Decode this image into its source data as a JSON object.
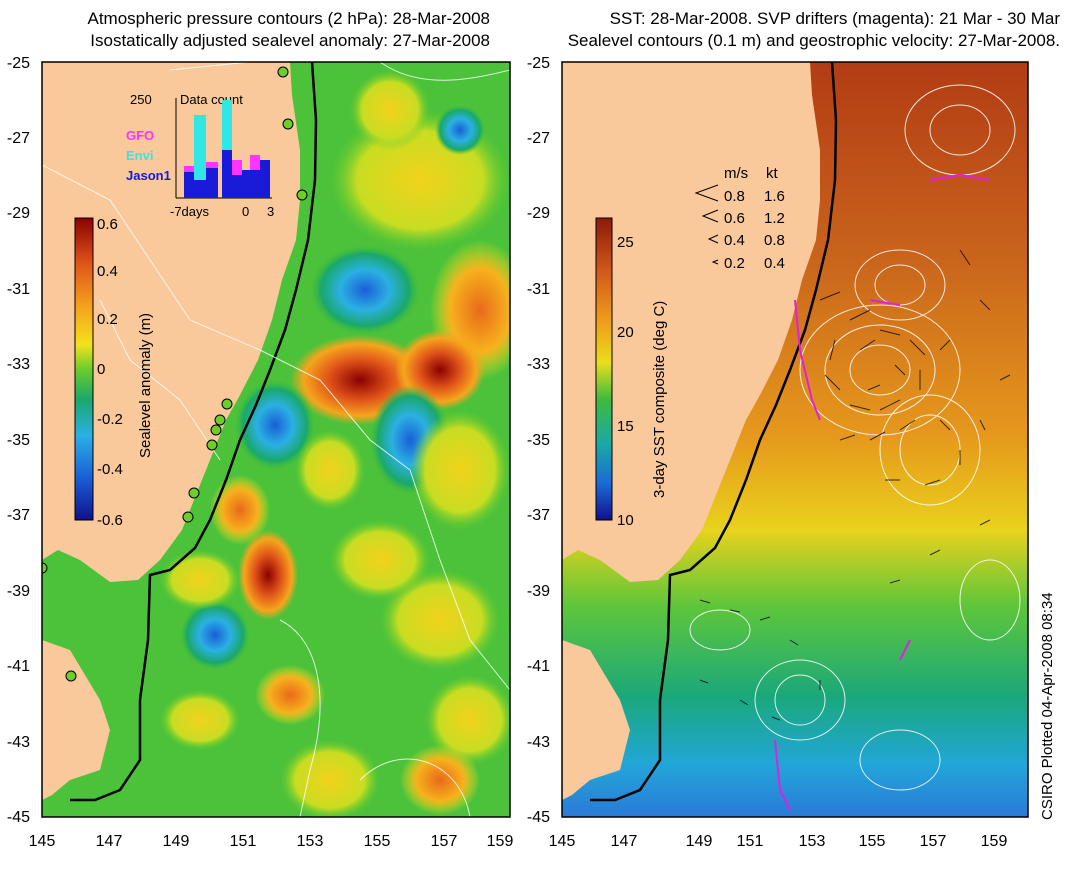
{
  "left_panel": {
    "title_line1": "Atmospheric pressure contours (2 hPa): 28-Mar-2008",
    "title_line2": "Isostatically adjusted sealevel anomaly: 27-Mar-2008",
    "y_ticks": [
      "-25",
      "-27",
      "-29",
      "-31",
      "-33",
      "-35",
      "-37",
      "-39",
      "-41",
      "-43",
      "-45"
    ],
    "x_ticks": [
      "145",
      "147",
      "149",
      "151",
      "153",
      "155",
      "157",
      "159"
    ],
    "colorbar": {
      "label": "Sealevel anomaly (m)",
      "ticks": [
        "0.6",
        "0.4",
        "0.2",
        "0",
        "-0.2",
        "-0.4",
        "-0.6"
      ]
    },
    "inset": {
      "title": "Data count",
      "max_label": "250",
      "x_labels": [
        "-7days",
        "0",
        "3"
      ],
      "legend": [
        {
          "name": "GFO",
          "color": "#ff33ff"
        },
        {
          "name": "Envi",
          "color": "#33e6e6"
        },
        {
          "name": "Jason1",
          "color": "#1a1ad9"
        }
      ]
    },
    "colors": {
      "land": "#f9c89b",
      "ocean_green": "#3dbb3d",
      "coast": "#000000"
    }
  },
  "right_panel": {
    "title_line1": "SST: 28-Mar-2008. SVP drifters (magenta): 21 Mar - 30 Mar",
    "title_line2": "Sealevel contours (0.1 m) and geostrophic velocity: 27-Mar-2008.",
    "y_ticks": [
      "-25",
      "-27",
      "-29",
      "-31",
      "-33",
      "-35",
      "-37",
      "-39",
      "-41",
      "-43",
      "-45"
    ],
    "x_ticks": [
      "145",
      "147",
      "149",
      "151",
      "153",
      "155",
      "157",
      "159"
    ],
    "colorbar": {
      "label": "3-day SST composite (deg C)",
      "ticks": [
        "25",
        "20",
        "15",
        "10"
      ]
    },
    "velocity_legend": {
      "header_ms": "m/s",
      "header_kt": "kt",
      "rows": [
        {
          "ms": "0.8",
          "kt": "1.6"
        },
        {
          "ms": "0.6",
          "kt": "1.2"
        },
        {
          "ms": "0.4",
          "kt": "0.8"
        },
        {
          "ms": "0.2",
          "kt": "0.4"
        }
      ]
    }
  },
  "credit": "CSIRO Plotted 04-Apr-2008 08:34"
}
